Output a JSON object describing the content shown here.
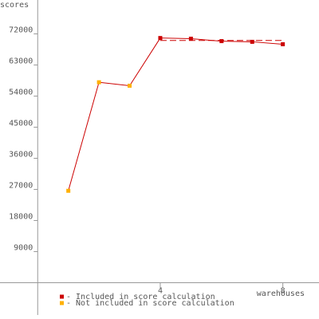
{
  "chart_data": {
    "type": "line",
    "y_label": "scores",
    "x_label": "warehouses",
    "x": [
      1,
      2,
      3,
      4,
      5,
      6,
      7,
      8
    ],
    "values": [
      26600,
      58000,
      57000,
      70800,
      70600,
      69900,
      69700,
      69000
    ],
    "included": [
      false,
      false,
      false,
      true,
      true,
      true,
      true,
      true
    ],
    "line_color": "#cc0000",
    "score_level": 70100,
    "legend": [
      {
        "label": "- Included in score calculation",
        "color": "#cc0000"
      },
      {
        "label": "- Not included in score calculation",
        "color": "#ffb000"
      }
    ],
    "xlim": [
      -1.23,
      9.18
    ],
    "ylim": [
      -10500,
      81800
    ],
    "xticks": [
      4,
      8
    ],
    "yticks": [
      9000,
      18000,
      27000,
      36000,
      45000,
      54000,
      63000,
      72000
    ]
  }
}
